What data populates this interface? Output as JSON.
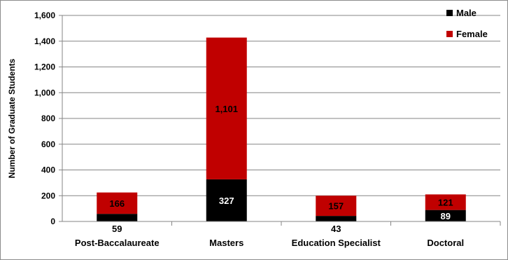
{
  "chart_data": {
    "type": "bar",
    "stacked": true,
    "categories": [
      "Post-Baccalaureate",
      "Masters",
      "Education Specialist",
      "Doctoral"
    ],
    "series": [
      {
        "name": "Male",
        "values": [
          59,
          327,
          43,
          89
        ],
        "color": "#000000"
      },
      {
        "name": "Female",
        "values": [
          166,
          1101,
          157,
          121
        ],
        "color": "#c00000"
      }
    ],
    "data_labels": {
      "male": [
        "59",
        "327",
        "43",
        "89"
      ],
      "female": [
        "166",
        "1,101",
        "157",
        "121"
      ]
    },
    "ylabel": "Number of Graduate Students",
    "xlabel": "",
    "title": "",
    "ylim": [
      0,
      1600
    ],
    "yticks": [
      0,
      200,
      400,
      600,
      800,
      1000,
      1200,
      1400,
      1600
    ],
    "ytick_labels": [
      "0",
      "200",
      "400",
      "600",
      "800",
      "1,000",
      "1,200",
      "1,400",
      "1,600"
    ],
    "gridlines": true,
    "legend_position": "top-right"
  }
}
